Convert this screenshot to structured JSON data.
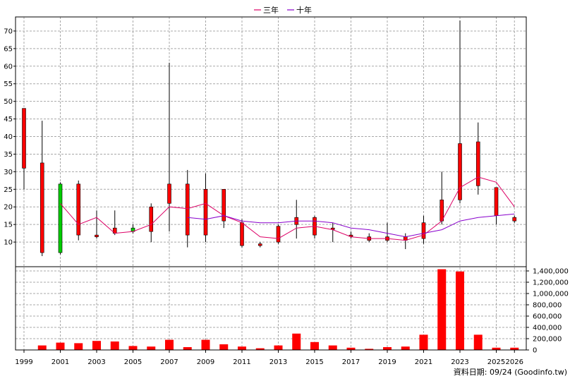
{
  "chart_data": {
    "type": "candlestick",
    "legend": [
      {
        "name": "三年",
        "color": "#dd0066"
      },
      {
        "name": "十年",
        "color": "#8800cc"
      }
    ],
    "legend_position": "top-center",
    "price_axis": {
      "ylim": [
        3,
        74
      ],
      "ticks": [
        10,
        15,
        20,
        25,
        30,
        35,
        40,
        45,
        50,
        55,
        60,
        65,
        70
      ],
      "side": "left",
      "grid": true
    },
    "volume_axis": {
      "ylim": [
        0,
        1400000
      ],
      "ticks": [
        0,
        200000,
        400000,
        600000,
        800000,
        1000000,
        1200000,
        1400000
      ],
      "tick_labels": [
        "0",
        "200,000",
        "400,000",
        "600,000",
        "800,000",
        "1,000,000",
        "1,200,000",
        "1,400,000"
      ],
      "side": "right",
      "grid": true
    },
    "x_labels": [
      "1999",
      "2001",
      "2003",
      "2005",
      "2007",
      "2009",
      "2011",
      "2013",
      "2015",
      "2017",
      "2019",
      "2021",
      "2023",
      "2025",
      "2026"
    ],
    "colors": {
      "up": "#ff0000",
      "down": "#00cc00",
      "volume": "#ff0000",
      "wick": "#000000"
    },
    "candles": [
      {
        "year": "1999",
        "open": 31,
        "high": 48,
        "low": 25,
        "close": 48
      },
      {
        "year": "2000",
        "open": 7,
        "high": 44.5,
        "low": 6,
        "close": 32.5
      },
      {
        "year": "2001",
        "open": 26.5,
        "high": 27,
        "low": 6.5,
        "close": 7
      },
      {
        "year": "2002",
        "open": 12,
        "high": 27.5,
        "low": 10.5,
        "close": 26.5
      },
      {
        "year": "2003",
        "open": 11.5,
        "high": 19,
        "low": 11,
        "close": 12
      },
      {
        "year": "2004",
        "open": 12.5,
        "high": 19,
        "low": 12,
        "close": 14
      },
      {
        "year": "2005",
        "open": 14,
        "high": 15,
        "low": 12.5,
        "close": 13
      },
      {
        "year": "2006",
        "open": 13,
        "high": 21,
        "low": 10,
        "close": 20
      },
      {
        "year": "2007",
        "open": 21,
        "high": 61,
        "low": 13,
        "close": 26.5
      },
      {
        "year": "2008",
        "open": 12,
        "high": 30.5,
        "low": 8.5,
        "close": 26.5
      },
      {
        "year": "2009",
        "open": 12,
        "high": 29.5,
        "low": 10,
        "close": 25
      },
      {
        "year": "2010",
        "open": 16,
        "high": 25,
        "low": 14,
        "close": 25
      },
      {
        "year": "2011",
        "open": 9,
        "high": 16.5,
        "low": 8.5,
        "close": 15.5
      },
      {
        "year": "2012",
        "open": 9,
        "high": 10,
        "low": 8.5,
        "close": 9.5
      },
      {
        "year": "2013",
        "open": 10,
        "high": 15,
        "low": 9.5,
        "close": 14.5
      },
      {
        "year": "2014",
        "open": 15,
        "high": 22,
        "low": 11,
        "close": 17
      },
      {
        "year": "2015",
        "open": 12,
        "high": 17.5,
        "low": 11,
        "close": 17
      },
      {
        "year": "2016",
        "open": 14,
        "high": 15.5,
        "low": 10,
        "close": 14
      },
      {
        "year": "2017",
        "open": 12,
        "high": 13,
        "low": 11,
        "close": 12
      },
      {
        "year": "2018",
        "open": 10.5,
        "high": 12.5,
        "low": 10,
        "close": 11.5
      },
      {
        "year": "2019",
        "open": 10.5,
        "high": 15.5,
        "low": 10,
        "close": 11.5
      },
      {
        "year": "2020",
        "open": 10.5,
        "high": 12.5,
        "low": 8,
        "close": 11.5
      },
      {
        "year": "2021",
        "open": 11,
        "high": 17.5,
        "low": 9.5,
        "close": 15.5
      },
      {
        "year": "2022",
        "open": 16,
        "high": 30,
        "low": 15,
        "close": 22
      },
      {
        "year": "2023",
        "open": 22,
        "high": 73,
        "low": 21,
        "close": 38
      },
      {
        "year": "2024",
        "open": 26,
        "high": 44,
        "low": 23.5,
        "close": 38.5
      },
      {
        "year": "2025",
        "open": 17.5,
        "high": 25.5,
        "low": 15,
        "close": 25.5
      },
      {
        "year": "2026",
        "open": 16,
        "high": 17.5,
        "low": 15.5,
        "close": 17
      }
    ],
    "series": [
      {
        "name": "三年",
        "values": [
          null,
          null,
          21,
          15,
          17,
          12.5,
          13,
          15,
          20,
          19.5,
          21,
          17.5,
          15.5,
          11.5,
          11,
          14,
          14.5,
          13.5,
          11.5,
          11,
          11,
          10.5,
          12,
          16,
          25.5,
          28.5,
          27,
          20
        ]
      },
      {
        "name": "十年",
        "values": [
          null,
          null,
          null,
          null,
          null,
          null,
          null,
          null,
          null,
          17,
          16.5,
          17.5,
          16,
          15.5,
          15.5,
          16,
          16,
          15.5,
          14,
          13.5,
          12.5,
          11.5,
          12.5,
          13.5,
          16,
          17,
          17.5,
          18
        ]
      }
    ],
    "volume": [
      0,
      80000,
      130000,
      120000,
      160000,
      150000,
      70000,
      60000,
      180000,
      50000,
      180000,
      100000,
      60000,
      30000,
      80000,
      290000,
      140000,
      80000,
      40000,
      20000,
      50000,
      60000,
      270000,
      1430000,
      1390000,
      270000,
      40000,
      40000
    ]
  },
  "footer_note": "資料日期: 09/24  (Goodinfo.tw)"
}
